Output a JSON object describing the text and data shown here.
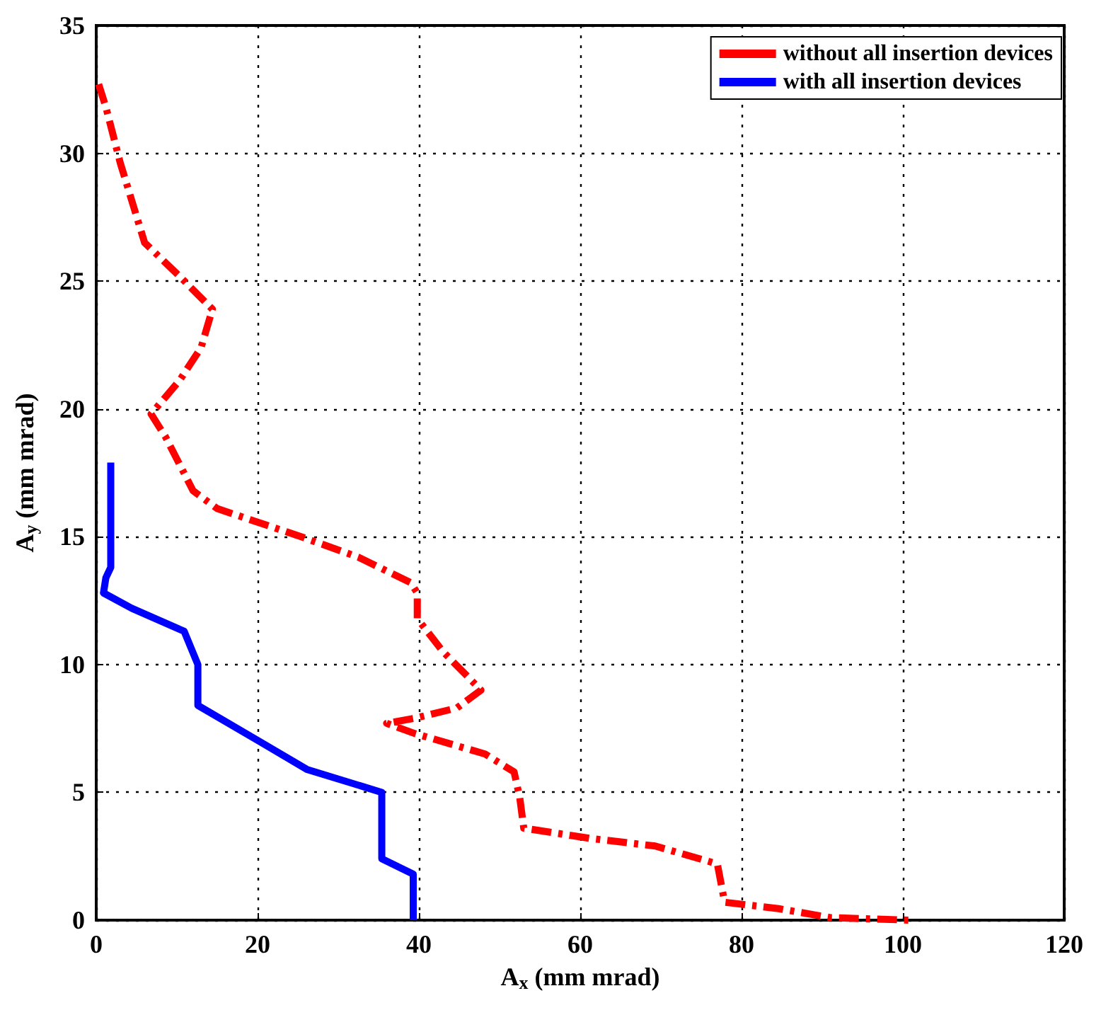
{
  "chart_data": {
    "type": "line",
    "xlabel": "A$_{x}$ (mm mrad)",
    "ylabel": "A$_{y}$ (mm mrad)",
    "xlim": [
      0,
      120
    ],
    "xticks": [
      0,
      20,
      40,
      60,
      80,
      100,
      120
    ],
    "ylim": [
      0,
      35
    ],
    "yticks": [
      0,
      5,
      10,
      15,
      20,
      25,
      30,
      35
    ],
    "grid": true,
    "legend": "top right",
    "marker": "none",
    "series": [
      {
        "name": "without all insertion devices",
        "color": "#ff0000",
        "line_style": "dashed",
        "x": [
          0.3,
          1.2,
          3,
          6,
          10.3,
          14.4,
          13,
          10.3,
          6.8,
          8.6,
          12,
          15,
          25.4,
          32.5,
          39,
          39.8,
          39.8,
          43,
          47.7,
          44.7,
          39.5,
          36,
          39.5,
          48.2,
          51.8,
          52.5,
          53,
          61.2,
          69.3,
          77,
          77.9,
          84.6,
          91,
          101
        ],
        "values": [
          32.7,
          31.8,
          29.6,
          26.5,
          25.2,
          23.9,
          22.4,
          21.1,
          19.8,
          18.9,
          16.8,
          16.1,
          15,
          14.2,
          13.2,
          12.8,
          11.8,
          10.5,
          9,
          8.3,
          7.9,
          7.7,
          7.3,
          6.5,
          5.8,
          4.8,
          3.6,
          3.2,
          2.9,
          2.2,
          0.7,
          0.45,
          0.1,
          0
        ]
      },
      {
        "name": "with all insertion devices",
        "color": "#0000ff",
        "line_style": "solid",
        "x": [
          1.8,
          1.8,
          1.2,
          0.9,
          4.4,
          10.9,
          12.6,
          12.6,
          20.2,
          26.1,
          35.4,
          35.4,
          39.3,
          39.3
        ],
        "values": [
          17.9,
          13.8,
          13.4,
          12.8,
          12.2,
          11.3,
          10,
          8.4,
          7,
          5.9,
          5,
          2.4,
          1.8,
          0
        ]
      }
    ]
  }
}
